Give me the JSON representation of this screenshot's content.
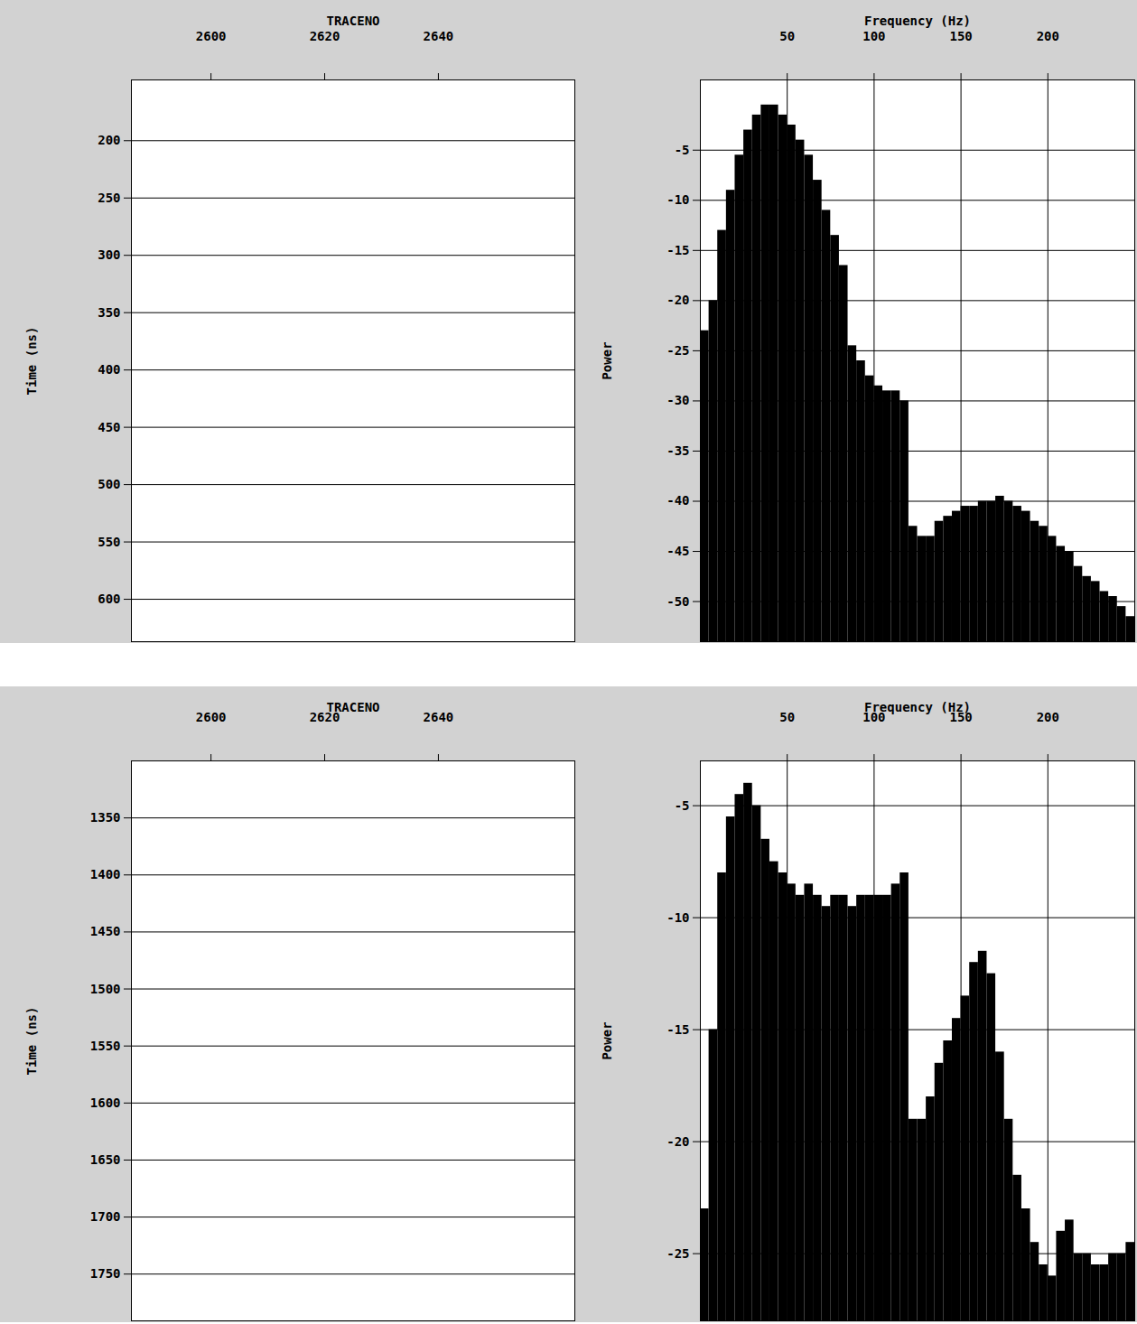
{
  "chart_data": [
    {
      "type": "wiggle",
      "xlabel": "TRACENO",
      "ylabel": "Time (ns)",
      "xlim": [
        2586,
        2664
      ],
      "xticks": [
        2600,
        2620,
        2640
      ],
      "ylim": [
        147,
        637
      ],
      "yticks": [
        200,
        250,
        300,
        350,
        400,
        450,
        500,
        550,
        600
      ],
      "grid": true
    },
    {
      "type": "histogram",
      "xlabel": "Frequency (Hz)",
      "ylabel": "Power",
      "color": "#000000",
      "xlim": [
        0,
        250
      ],
      "xticks": [
        50,
        100,
        150,
        200
      ],
      "ylim": [
        -54,
        2
      ],
      "yticks": [
        -5,
        -10,
        -15,
        -20,
        -25,
        -30,
        -35,
        -40,
        -45,
        -50
      ],
      "grid": true,
      "bins": [
        0,
        5,
        10,
        15,
        20,
        25,
        30,
        35,
        40,
        45,
        50,
        55,
        60,
        65,
        70,
        75,
        80,
        85,
        90,
        95,
        100,
        105,
        110,
        115,
        120,
        125,
        130,
        135,
        140,
        145,
        150,
        155,
        160,
        165,
        170,
        175,
        180,
        185,
        190,
        195,
        200,
        205,
        210,
        215,
        220,
        225,
        230,
        235,
        240,
        245,
        250
      ],
      "values": [
        -23,
        -20,
        -13,
        -9,
        -5.5,
        -3,
        -1.5,
        -0.5,
        -0.5,
        -1.5,
        -2.5,
        -4,
        -5.5,
        -8,
        -11,
        -13.5,
        -16.5,
        -24.5,
        -26,
        -27.5,
        -28.5,
        -29,
        -29,
        -30,
        -42.5,
        -43.5,
        -43.5,
        -42,
        -41.5,
        -41,
        -40.5,
        -40.5,
        -40,
        -40,
        -39.5,
        -40,
        -40.5,
        -41,
        -42,
        -42.5,
        -43.5,
        -44.5,
        -45,
        -46.5,
        -47.5,
        -48,
        -49,
        -49.5,
        -50.5,
        -51.5
      ]
    },
    {
      "type": "wiggle",
      "xlabel": "TRACENO",
      "ylabel": "Time (ns)",
      "xlim": [
        2586,
        2664
      ],
      "xticks": [
        2600,
        2620,
        2640
      ],
      "ylim": [
        1300,
        1791
      ],
      "yticks": [
        1350,
        1400,
        1450,
        1500,
        1550,
        1600,
        1650,
        1700,
        1750
      ],
      "grid": true
    },
    {
      "type": "histogram",
      "xlabel": "Frequency (Hz)",
      "ylabel": "Power",
      "color": "#000000",
      "xlim": [
        0,
        250
      ],
      "xticks": [
        50,
        100,
        150,
        200
      ],
      "ylim": [
        -28,
        -3
      ],
      "yticks": [
        -5,
        -10,
        -15,
        -20,
        -25
      ],
      "grid": true,
      "bins": [
        0,
        5,
        10,
        15,
        20,
        25,
        30,
        35,
        40,
        45,
        50,
        55,
        60,
        65,
        70,
        75,
        80,
        85,
        90,
        95,
        100,
        105,
        110,
        115,
        120,
        125,
        130,
        135,
        140,
        145,
        150,
        155,
        160,
        165,
        170,
        175,
        180,
        185,
        190,
        195,
        200,
        205,
        210,
        215,
        220,
        225,
        230,
        235,
        240,
        245,
        250
      ],
      "values": [
        -23,
        -15,
        -8,
        -5.5,
        -4.5,
        -4,
        -5,
        -6.5,
        -7.5,
        -8,
        -8.5,
        -9,
        -8.5,
        -9,
        -9.5,
        -9,
        -9,
        -9.5,
        -9,
        -9,
        -9,
        -9,
        -8.5,
        -8,
        -19,
        -19,
        -18,
        -16.5,
        -15.5,
        -14.5,
        -13.5,
        -12,
        -11.5,
        -12.5,
        -16,
        -19,
        -21.5,
        -23,
        -24.5,
        -25.5,
        -26,
        -24,
        -23.5,
        -25,
        -25,
        -25.5,
        -25.5,
        -25,
        -25,
        -24.5
      ]
    }
  ]
}
